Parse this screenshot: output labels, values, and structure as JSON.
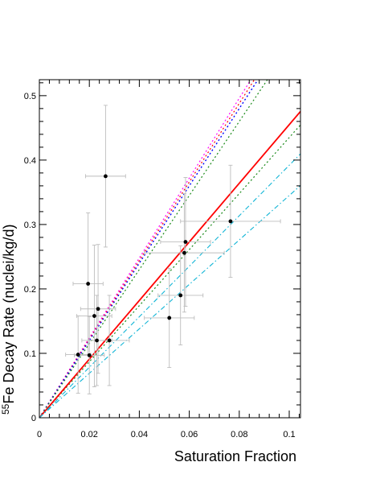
{
  "chart_data": {
    "type": "scatter",
    "title": "",
    "xlabel": "Saturation Fraction",
    "ylabel_superscript": "55",
    "ylabel": "Fe Decay Rate (nuclei/kg/d)",
    "xlim": [
      0,
      0.1045
    ],
    "ylim": [
      0,
      0.5248
    ],
    "xticks": [
      0,
      0.02,
      0.04,
      0.06,
      0.08,
      0.1
    ],
    "xtick_labels": [
      "0",
      "0.02",
      "0.04",
      "0.06",
      "0.08",
      "0.1"
    ],
    "yticks": [
      0.1,
      0.2,
      0.3,
      0.4,
      0.5
    ],
    "ytick_labels": [
      "0.1",
      "0.2",
      "0.3",
      "0.4",
      "0.5"
    ],
    "ytick_zero_label": "0",
    "grid": false,
    "points": [
      {
        "x": 0.0155,
        "y": 0.098,
        "xerr": 0.005,
        "yerr": 0.06
      },
      {
        "x": 0.0195,
        "y": 0.208,
        "xerr": 0.006,
        "yerr": 0.11
      },
      {
        "x": 0.02,
        "y": 0.097,
        "xerr": 0.006,
        "yerr": 0.06
      },
      {
        "x": 0.022,
        "y": 0.158,
        "xerr": 0.007,
        "yerr": 0.11
      },
      {
        "x": 0.023,
        "y": 0.12,
        "xerr": 0.006,
        "yerr": 0.07
      },
      {
        "x": 0.0235,
        "y": 0.169,
        "xerr": 0.007,
        "yerr": 0.1
      },
      {
        "x": 0.0265,
        "y": 0.375,
        "xerr": 0.008,
        "yerr": 0.11
      },
      {
        "x": 0.028,
        "y": 0.12,
        "xerr": 0.008,
        "yerr": 0.07
      },
      {
        "x": 0.052,
        "y": 0.155,
        "xerr": 0.01,
        "yerr": 0.077
      },
      {
        "x": 0.0565,
        "y": 0.19,
        "xerr": 0.009,
        "yerr": 0.077
      },
      {
        "x": 0.058,
        "y": 0.256,
        "xerr": 0.016,
        "yerr": 0.092
      },
      {
        "x": 0.0585,
        "y": 0.273,
        "xerr": 0.01,
        "yerr": 0.1
      },
      {
        "x": 0.0765,
        "y": 0.305,
        "xerr": 0.02,
        "yerr": 0.087
      }
    ],
    "lines": [
      {
        "color": "#ff00ff",
        "dash": "dot",
        "slope": 6.2,
        "width": 1.2
      },
      {
        "color": "#ff0000",
        "dash": "dot",
        "slope": 6.1,
        "width": 1.2
      },
      {
        "color": "#0000ff",
        "dash": "dot",
        "slope": 6.0,
        "width": 1.4
      },
      {
        "color": "#1a8a1a",
        "dash": "dot",
        "slope": 5.75,
        "width": 1.2
      },
      {
        "color": "#1a8a1a",
        "dash": "dot",
        "slope": 4.35,
        "width": 1.2
      },
      {
        "color": "#ff0000",
        "dash": "solid",
        "slope": 4.55,
        "width": 1.8
      },
      {
        "color": "#11b5d6",
        "dash": "dashdot",
        "slope": 3.92,
        "width": 1.1
      },
      {
        "color": "#11b5d6",
        "dash": "dashdot",
        "slope": 3.45,
        "width": 1.1
      }
    ],
    "colors": {
      "points": "#000000",
      "errorbars": "#bdbdbd",
      "frame": "#000000"
    }
  }
}
